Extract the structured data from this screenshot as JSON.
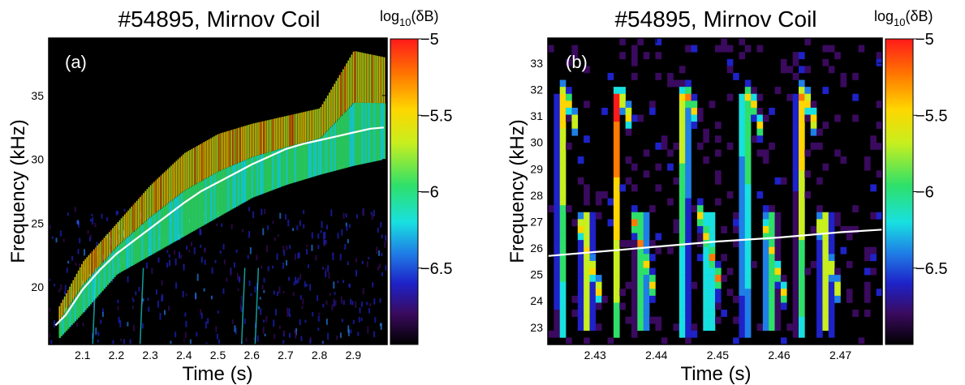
{
  "colors": {
    "background": "#000000",
    "trace": "#ffffff",
    "colormap": [
      "#000000",
      "#3a0a5e",
      "#1e22c8",
      "#1f7fe6",
      "#18e0e0",
      "#2ee06a",
      "#c8ef1e",
      "#ffd600",
      "#ff7a00",
      "#ff1a1a"
    ]
  },
  "chart_data": [
    {
      "type": "heatmap",
      "title": "#54895, Mirnov Coil",
      "panel_label": "(a)",
      "xlabel": "Time (s)",
      "ylabel": "Frequency (kHz)",
      "xlim": [
        2.0,
        3.0
      ],
      "ylim": [
        15.5,
        39.5
      ],
      "xticks": [
        2.1,
        2.2,
        2.3,
        2.4,
        2.5,
        2.6,
        2.7,
        2.8,
        2.9
      ],
      "xtick_labels": [
        "2.1",
        "2.2",
        "2.3",
        "2.4",
        "2.5",
        "2.6",
        "2.7",
        "2.8",
        "2.9"
      ],
      "yticks": [
        20,
        25,
        30,
        35
      ],
      "ytick_labels": [
        "20",
        "25",
        "30",
        "35"
      ],
      "colorbar": {
        "label_base": "log",
        "label_sub": "10",
        "label_rest": "(δB)",
        "clim": [
          -7.0,
          -5.0
        ],
        "ticks": [
          -5,
          -5.5,
          -6,
          -6.5
        ],
        "tick_labels": [
          "−5",
          "−5.5",
          "−6",
          "−6.5"
        ]
      },
      "white_trace": {
        "x": [
          2.02,
          2.05,
          2.1,
          2.15,
          2.2,
          2.25,
          2.3,
          2.35,
          2.4,
          2.45,
          2.5,
          2.55,
          2.6,
          2.65,
          2.7,
          2.75,
          2.8,
          2.85,
          2.9,
          2.95,
          2.99
        ],
        "y": [
          17.0,
          17.8,
          19.8,
          21.3,
          22.6,
          23.6,
          24.6,
          25.6,
          26.6,
          27.5,
          28.2,
          28.9,
          29.6,
          30.2,
          30.8,
          31.2,
          31.5,
          31.8,
          32.1,
          32.4,
          32.5
        ]
      },
      "mode_band": {
        "x": [
          2.03,
          2.1,
          2.2,
          2.3,
          2.4,
          2.5,
          2.6,
          2.7,
          2.8,
          2.9,
          2.99
        ],
        "lower": [
          16.0,
          18.0,
          21.0,
          22.5,
          24.0,
          25.5,
          27.0,
          28.0,
          28.8,
          29.5,
          30.0
        ],
        "upper": [
          18.5,
          22.0,
          25.0,
          28.0,
          30.5,
          32.0,
          32.8,
          33.4,
          34.0,
          38.5,
          38.0
        ]
      }
    },
    {
      "type": "heatmap",
      "title": "#54895, Mirnov Coil",
      "panel_label": "(b)",
      "xlabel": "Time (s)",
      "ylabel": "Frequency (kHz)",
      "xlim": [
        2.4223,
        2.4768
      ],
      "ylim": [
        22.35,
        33.95
      ],
      "xticks": [
        2.43,
        2.44,
        2.45,
        2.46,
        2.47
      ],
      "xtick_labels": [
        "2.43",
        "2.44",
        "2.45",
        "2.46",
        "2.47"
      ],
      "yticks": [
        23,
        24,
        25,
        26,
        27,
        28,
        29,
        30,
        31,
        32,
        33
      ],
      "ytick_labels": [
        "23",
        "24",
        "25",
        "26",
        "27",
        "28",
        "29",
        "30",
        "31",
        "32",
        "33"
      ],
      "colorbar": {
        "label_base": "log",
        "label_sub": "10",
        "label_rest": "(δB)",
        "clim": [
          -7.0,
          -5.0
        ],
        "ticks": [
          -5,
          -5.5,
          -6,
          -6.5
        ],
        "tick_labels": [
          "−5",
          "−5.5",
          "−6",
          "−6.5"
        ]
      },
      "white_trace": {
        "x": [
          2.4223,
          2.43,
          2.44,
          2.45,
          2.46,
          2.47,
          2.4768
        ],
        "y": [
          25.7,
          25.85,
          26.05,
          26.25,
          26.4,
          26.6,
          26.7
        ]
      },
      "chirp_events_time": [
        2.4245,
        2.4335,
        2.4445,
        2.4545,
        2.4635
      ]
    }
  ]
}
